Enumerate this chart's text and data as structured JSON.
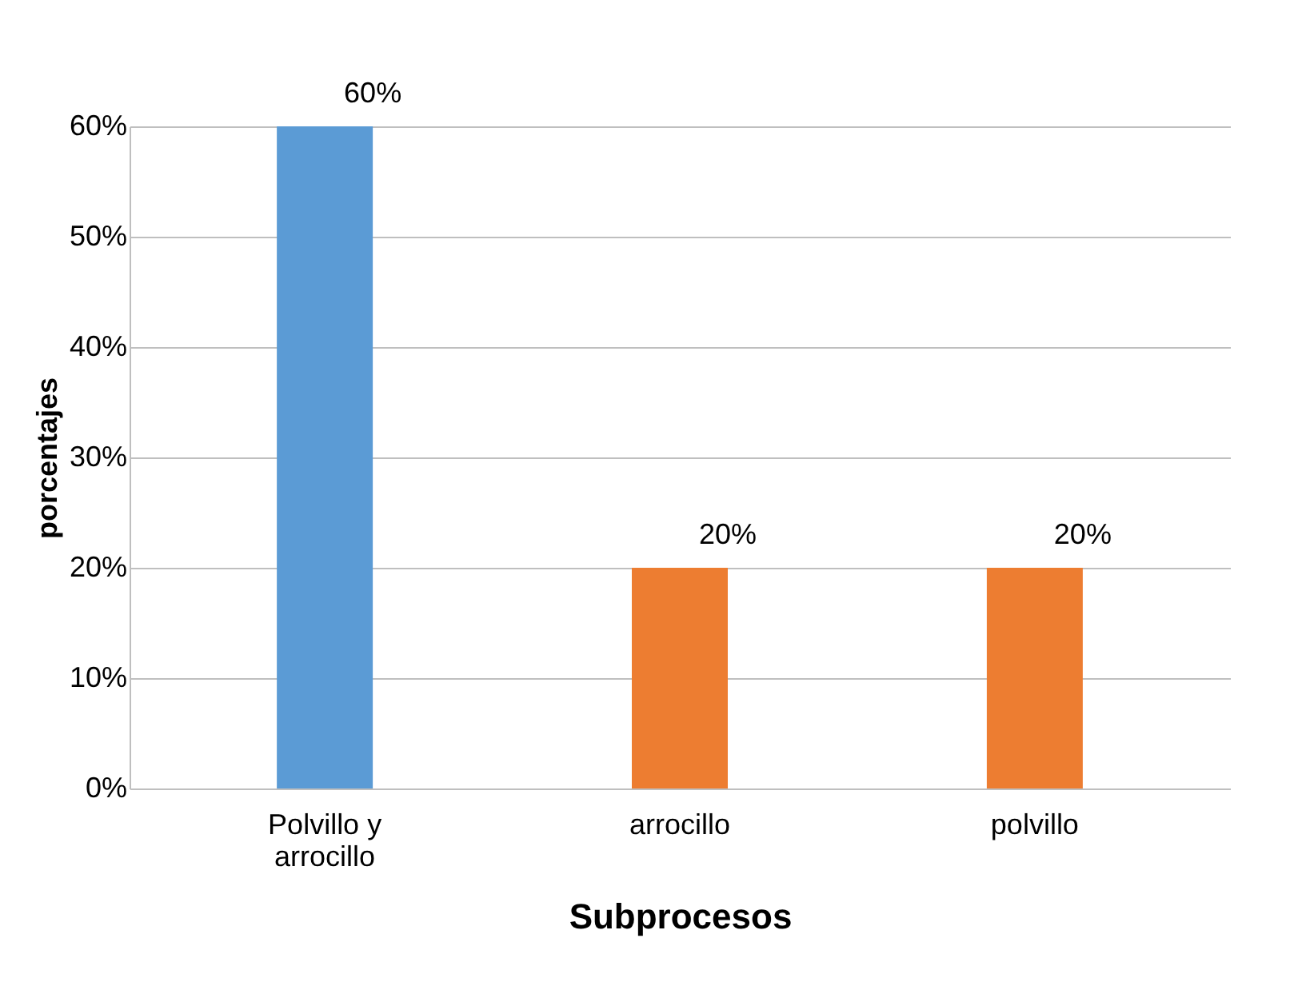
{
  "chart_data": {
    "type": "bar",
    "xlabel": "Subprocesos",
    "ylabel": "porcentajes",
    "categories": [
      "Polvillo y arrocillo",
      "arrocillo",
      "polvillo"
    ],
    "values": [
      60,
      20,
      20
    ],
    "colors": [
      "#5b9bd5",
      "#ed7d31",
      "#ed7d31"
    ],
    "value_labels": [
      "60%",
      "20%",
      "20%"
    ],
    "ylim": [
      0,
      60
    ],
    "yticks": [
      {
        "value": 0,
        "label": "0%"
      },
      {
        "value": 10,
        "label": "10%"
      },
      {
        "value": 20,
        "label": "20%"
      },
      {
        "value": 30,
        "label": "30%"
      },
      {
        "value": 40,
        "label": "40%"
      },
      {
        "value": 50,
        "label": "50%"
      },
      {
        "value": 60,
        "label": "60%"
      }
    ],
    "grid": "y"
  }
}
